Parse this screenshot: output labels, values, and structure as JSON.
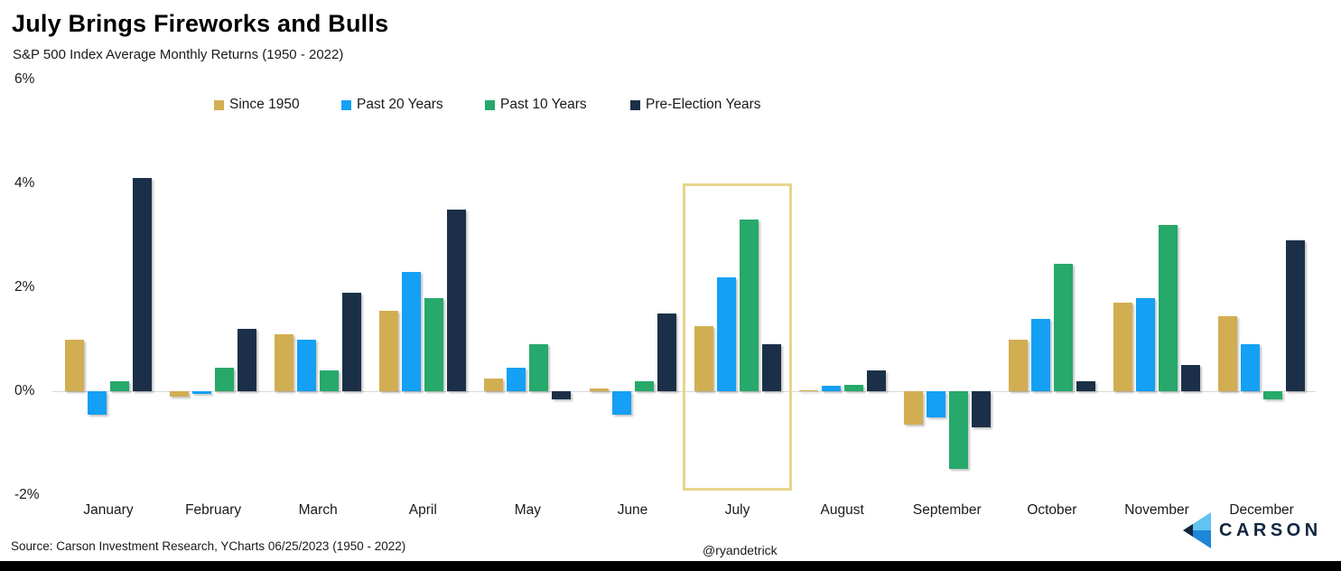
{
  "header": {
    "title": "July Brings Fireworks and Bulls",
    "subtitle": "S&P 500 Index Average Monthly Returns (1950 - 2022)"
  },
  "chart_data": {
    "type": "bar",
    "title": "July Brings Fireworks and Bulls",
    "subtitle": "S&P 500 Index Average Monthly Returns (1950 - 2022)",
    "categories": [
      "January",
      "February",
      "March",
      "April",
      "May",
      "June",
      "July",
      "August",
      "September",
      "October",
      "November",
      "December"
    ],
    "series": [
      {
        "name": "Since 1950",
        "color": "#d2ae52",
        "values": [
          1.0,
          -0.1,
          1.1,
          1.55,
          0.25,
          0.05,
          1.25,
          0.02,
          -0.65,
          1.0,
          1.7,
          1.45
        ]
      },
      {
        "name": "Past 20 Years",
        "color": "#14a0f4",
        "values": [
          -0.45,
          -0.05,
          1.0,
          2.3,
          0.45,
          -0.45,
          2.2,
          0.1,
          -0.5,
          1.4,
          1.8,
          0.9
        ]
      },
      {
        "name": "Past 10 Years",
        "color": "#26a96a",
        "values": [
          0.2,
          0.45,
          0.4,
          1.8,
          0.9,
          0.2,
          3.3,
          0.12,
          -1.5,
          2.45,
          3.2,
          -0.15
        ]
      },
      {
        "name": "Pre-Election Years",
        "color": "#1b3048",
        "values": [
          4.1,
          1.2,
          1.9,
          3.5,
          -0.15,
          1.5,
          0.9,
          0.4,
          -0.7,
          0.2,
          0.5,
          2.9
        ]
      }
    ],
    "xlabel": "",
    "ylabel": "",
    "ylim": [
      -2,
      6
    ],
    "yticks": [
      {
        "label": "6%",
        "value": 6
      },
      {
        "label": "4%",
        "value": 4
      },
      {
        "label": "2%",
        "value": 2
      },
      {
        "label": "0%",
        "value": 0
      },
      {
        "label": "-2%",
        "value": -2
      }
    ],
    "grid": false,
    "legend_position": "top",
    "zero_line_color": "#d9d9d9",
    "highlight": {
      "category": "July",
      "border_color": "#e8d48d"
    }
  },
  "footer": {
    "source": "Source: Carson Investment Research, YCharts 06/25/2023 (1950 - 2022)",
    "handle": "@ryandetrick",
    "logo_text": "CARSON"
  },
  "icons": {
    "carson_chevron": {
      "name": "carson-chevron-icon",
      "colors": {
        "light_blue": "#62c3f2",
        "mid_blue": "#1d86d8",
        "dark_navy": "#12263e"
      }
    }
  }
}
